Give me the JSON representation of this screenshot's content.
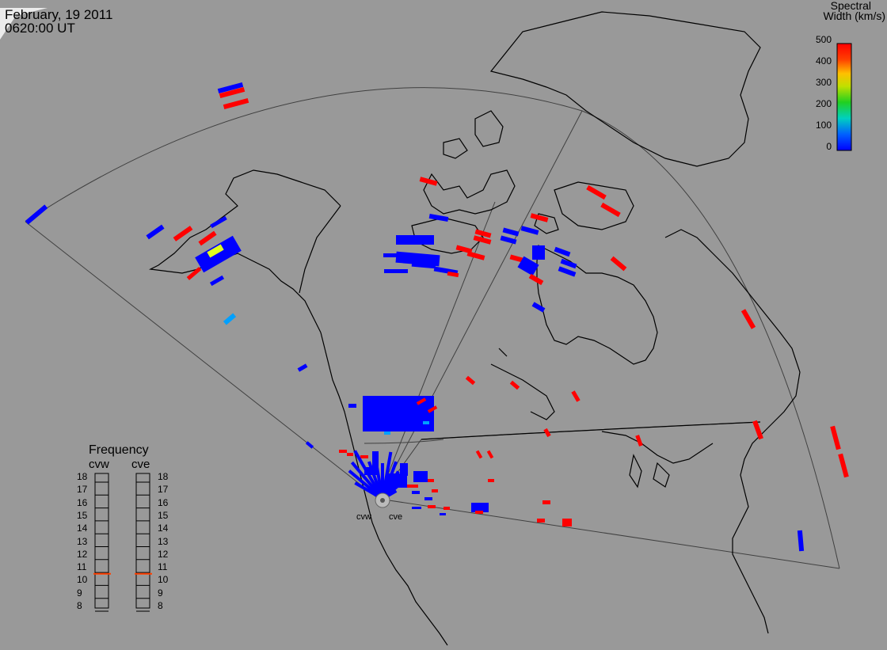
{
  "header": {
    "date": "February, 19 2011",
    "time": "0620:00 UT"
  },
  "colorbar": {
    "title_line1": "Spectral",
    "title_line2": "Width (km/s)",
    "ticks": [
      "500",
      "400",
      "300",
      "200",
      "100",
      "0"
    ],
    "range": [
      0,
      500
    ],
    "colors": [
      "#0000ff",
      "#00a0ff",
      "#00e0a0",
      "#40d020",
      "#ffe000",
      "#ff8000",
      "#ff0000"
    ]
  },
  "frequency_panel": {
    "title": "Frequency",
    "radars": [
      "cvw",
      "cve"
    ],
    "ticks": [
      "18",
      "17",
      "16",
      "15",
      "14",
      "13",
      "12",
      "11",
      "10",
      "9",
      "8"
    ],
    "cvw_mhz": 10.9,
    "cve_mhz": 10.9,
    "marker_color": "#ff4000"
  },
  "radar_labels": [
    "cvw",
    "cve"
  ],
  "colors": {
    "background": "#999999",
    "coastline": "#000000",
    "fov": "#333333",
    "low_width": "#0000ff",
    "high_width": "#ff0000",
    "mid_width": "#00a0ff",
    "yellow": "#e0ff20"
  }
}
